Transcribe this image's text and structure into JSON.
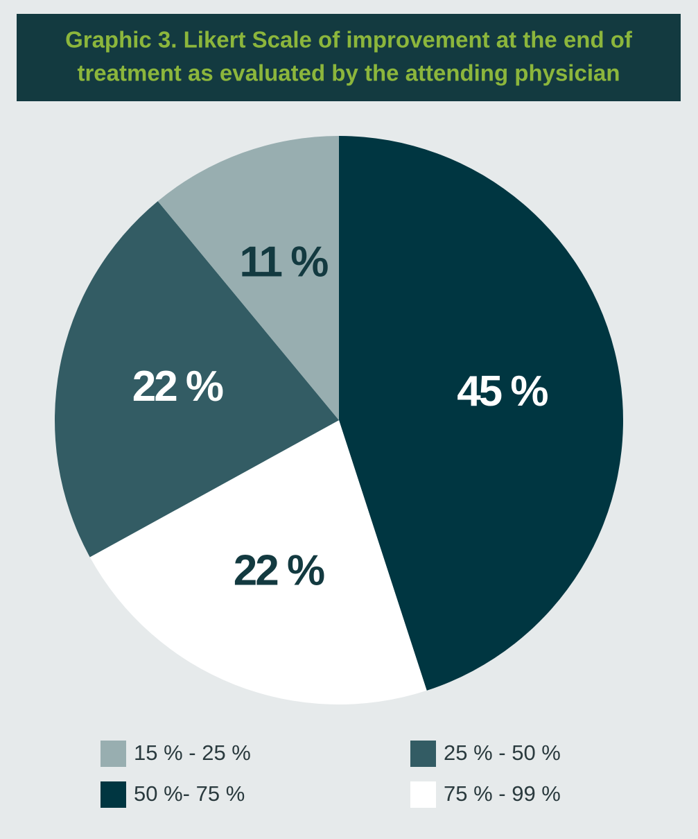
{
  "chart_data": {
    "type": "pie",
    "title": [
      "Graphic 3. Likert Scale of improvement at the end of",
      "treatment as evaluated by the attending physician"
    ],
    "categories": [
      "50 %- 75 %",
      "75 % - 99 %",
      "25 % - 50 %",
      "15 % - 25 %"
    ],
    "values": [
      45,
      22,
      22,
      11
    ],
    "value_labels": [
      "45 %",
      "22 %",
      "22 %",
      "11 %"
    ],
    "colors": [
      "#003641",
      "#ffffff",
      "#335c64",
      "#98aeb0"
    ]
  }
}
